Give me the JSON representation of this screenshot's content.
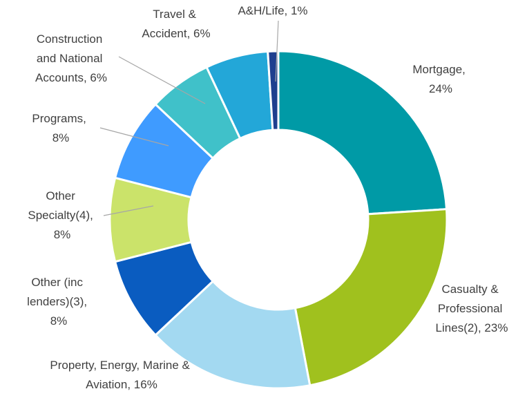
{
  "chart_data": {
    "type": "donut",
    "values": [
      24,
      23,
      16,
      8,
      8,
      8,
      6,
      6,
      1
    ],
    "value_labels": [
      "Mortgage, 24%",
      "Casualty & Professional Lines(2), 23%",
      "Property, Energy, Marine & Aviation, 16%",
      "Other (inc lenders)(3), 8%",
      "Other Specialty(4), 8%",
      "Programs, 8%",
      "Construction and National Accounts, 6%",
      "Travel & Accident, 6%",
      "A&H/Life, 1%"
    ],
    "colors": [
      "#009aa6",
      "#a0c11e",
      "#a3d9f1",
      "#0a5cc0",
      "#cbe36a",
      "#3f9bff",
      "#40c1c9",
      "#23a7d8",
      "#1f3f8f"
    ]
  }
}
